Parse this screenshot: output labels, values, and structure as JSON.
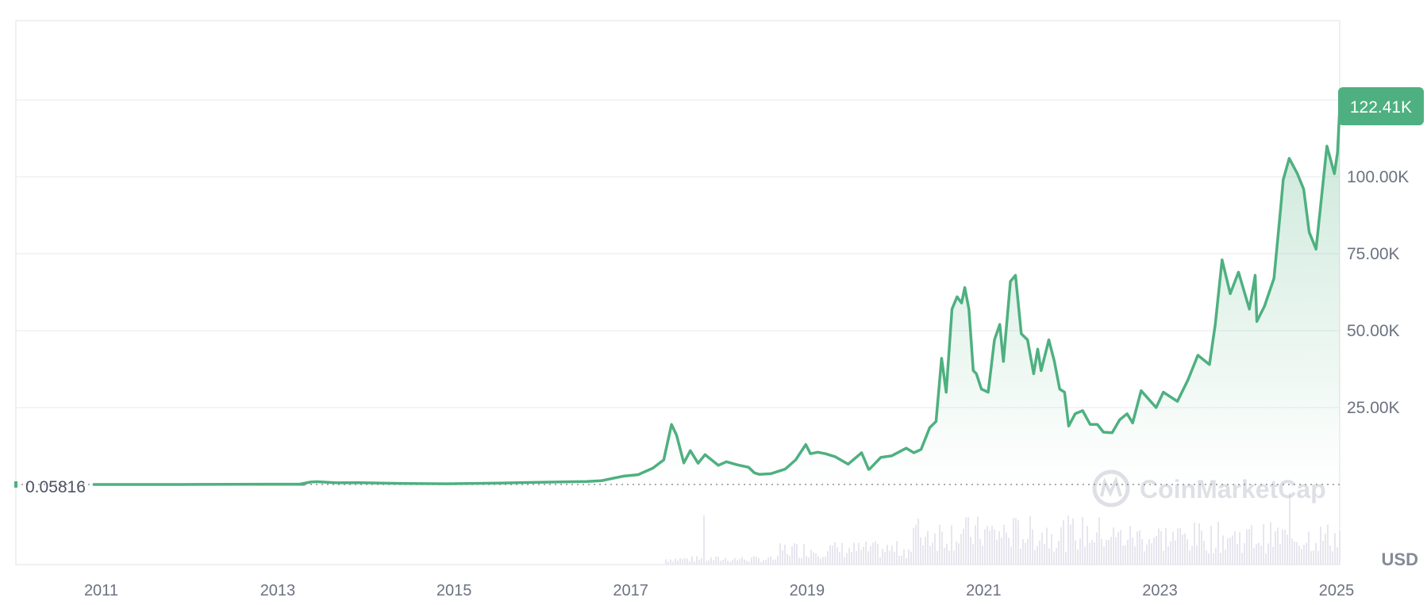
{
  "chart_data": {
    "type": "area",
    "title": "",
    "xlabel": "",
    "ylabel": "",
    "currency": "USD",
    "watermark": "CoinMarketCap",
    "current_price_label": "122.41K",
    "current_price": 122410,
    "baseline_label": "0.05816",
    "baseline_value": 0.05816,
    "x_tick_labels": [
      "2011",
      "2013",
      "2015",
      "2017",
      "2019",
      "2021",
      "2023",
      "2025"
    ],
    "y_tick_labels": [
      "25.00K",
      "50.00K",
      "75.00K",
      "100.00K"
    ],
    "y_tick_values": [
      25000,
      50000,
      75000,
      100000
    ],
    "xlim": [
      "2010-07-13",
      "2025-07-14"
    ],
    "ylim": [
      0,
      150000
    ],
    "grid": true,
    "colors": {
      "line": "#4eb080",
      "fill": "#4eb080",
      "baseline_segment": "#c0714f",
      "label_bg": "#4eb080"
    },
    "series": [
      {
        "x": [
          "2011-06-01",
          "2012-06-01",
          "2013-06-01",
          "2013-10-01",
          "2013-11-15",
          "2013-12-10",
          "2014-03-01",
          "2014-06-01",
          "2014-12-01",
          "2015-06-01",
          "2016-01-01",
          "2016-06-15",
          "2016-12-31",
          "2017-03-01",
          "2017-06-01",
          "2017-08-01",
          "2017-10-01",
          "2017-11-15",
          "2017-12-17",
          "2018-01-07",
          "2018-02-06",
          "2018-03-05",
          "2018-04-06",
          "2018-05-05",
          "2018-06-29",
          "2018-08-01",
          "2018-09-15",
          "2018-11-01",
          "2018-11-25",
          "2018-12-15",
          "2019-02-01",
          "2019-04-02",
          "2019-05-15",
          "2019-06-26",
          "2019-07-15",
          "2019-08-15",
          "2019-09-15",
          "2019-10-26",
          "2019-12-18",
          "2020-02-12",
          "2020-03-12",
          "2020-03-16",
          "2020-05-01",
          "2020-06-15",
          "2020-08-15",
          "2020-09-15",
          "2020-10-15",
          "2020-11-20",
          "2020-12-16",
          "2021-01-08",
          "2021-01-27",
          "2021-02-20",
          "2021-03-13",
          "2021-04-01",
          "2021-04-14",
          "2021-05-01",
          "2021-05-19",
          "2021-06-01",
          "2021-06-22",
          "2021-07-20",
          "2021-08-15",
          "2021-09-06",
          "2021-09-21",
          "2021-10-20",
          "2021-11-10",
          "2021-12-04",
          "2021-12-30",
          "2022-01-24",
          "2022-02-10",
          "2022-02-24",
          "2022-03-28",
          "2022-04-20",
          "2022-05-12",
          "2022-06-01",
          "2022-06-18",
          "2022-07-15",
          "2022-08-15",
          "2022-09-15",
          "2022-10-15",
          "2022-11-09",
          "2022-12-15",
          "2023-01-15",
          "2023-02-15",
          "2023-03-10",
          "2023-04-14",
          "2023-06-15",
          "2023-07-15",
          "2023-09-11",
          "2023-10-25",
          "2023-12-05",
          "2024-01-22",
          "2024-02-15",
          "2024-03-14",
          "2024-04-17",
          "2024-05-21",
          "2024-07-05",
          "2024-07-29",
          "2024-08-05",
          "2024-09-06",
          "2024-10-15",
          "2024-11-12",
          "2024-11-22",
          "2024-12-17",
          "2025-01-20",
          "2025-02-15",
          "2025-03-10",
          "2025-04-07",
          "2025-05-22",
          "2025-06-22",
          "2025-07-05",
          "2025-07-14"
        ],
        "y": [
          10,
          5,
          100,
          130,
          800,
          900,
          550,
          600,
          340,
          240,
          430,
          700,
          960,
          1200,
          2700,
          3200,
          5300,
          8000,
          19500,
          16000,
          7000,
          11000,
          6900,
          9700,
          6200,
          7400,
          6400,
          5600,
          3800,
          3300,
          3500,
          5000,
          8000,
          13000,
          10000,
          10500,
          10000,
          9000,
          6600,
          10300,
          4900,
          5000,
          8800,
          9300,
          11800,
          10300,
          11400,
          18500,
          20500,
          41000,
          30000,
          57000,
          61000,
          59000,
          64000,
          57000,
          37000,
          36000,
          31000,
          30000,
          47000,
          52000,
          40000,
          66000,
          68000,
          49000,
          47000,
          36000,
          44000,
          37000,
          47000,
          40000,
          31000,
          30000,
          19000,
          23000,
          24000,
          19500,
          19500,
          17000,
          16800,
          21000,
          23000,
          20000,
          30500,
          25000,
          30000,
          27000,
          34000,
          42000,
          39000,
          52000,
          73000,
          62000,
          69000,
          57000,
          68000,
          53000,
          58000,
          67000,
          90000,
          99000,
          106000,
          101000,
          96000,
          82000,
          76500,
          110000,
          101000,
          108000,
          122400
        ]
      }
    ]
  }
}
